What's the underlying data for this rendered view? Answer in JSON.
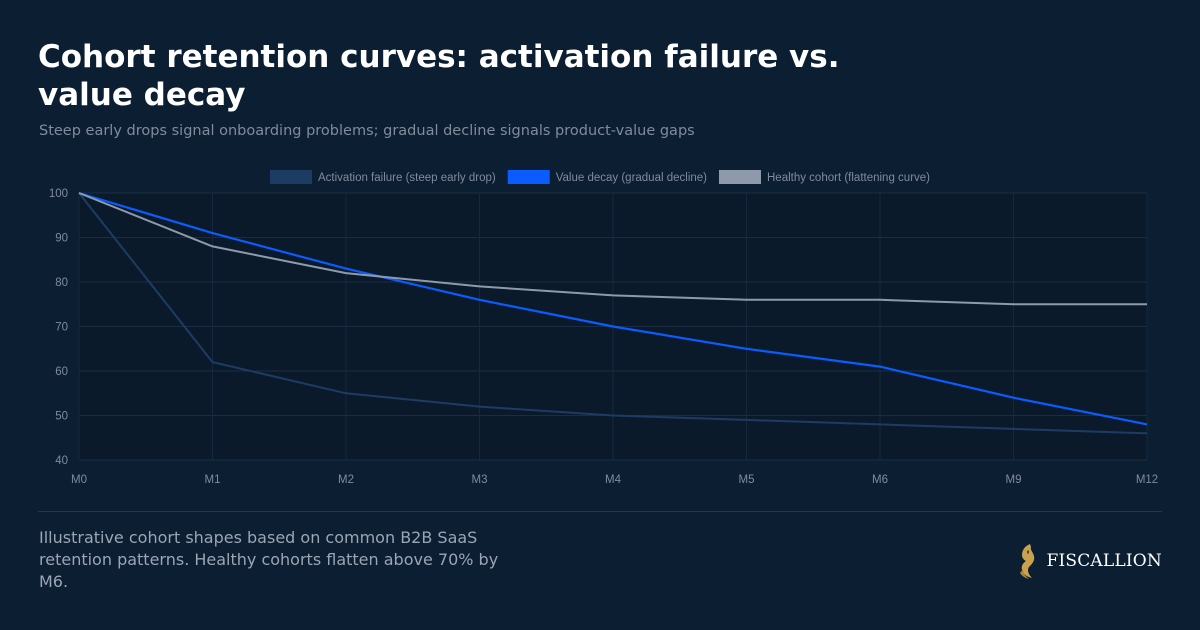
{
  "header": {
    "title": "Cohort retention curves: activation failure vs. value decay",
    "subtitle": "Steep early drops signal onboarding problems; gradual decline signals product-value gaps"
  },
  "footer": {
    "note": "Illustrative cohort shapes based on common B2B SaaS retention patterns. Healthy cohorts flatten above 70% by M6.",
    "brand": "FISCALLION",
    "logo_icon": "horse-head-icon",
    "logo_color": "#c8a24e"
  },
  "chart_data": {
    "type": "line",
    "categories": [
      "M0",
      "M1",
      "M2",
      "M3",
      "M4",
      "M5",
      "M6",
      "M9",
      "M12"
    ],
    "ylim": [
      40,
      100
    ],
    "yticks": [
      40,
      50,
      60,
      70,
      80,
      90,
      100
    ],
    "grid": true,
    "legend": "top-center",
    "series": [
      {
        "name": "Activation failure (steep early drop)",
        "color": "#1d3c64",
        "values": [
          100,
          62,
          55,
          52,
          50,
          49,
          48,
          47,
          46
        ]
      },
      {
        "name": "Value decay (gradual decline)",
        "color": "#0b5cff",
        "values": [
          100,
          91,
          83,
          76,
          70,
          65,
          61,
          54,
          48
        ]
      },
      {
        "name": "Healthy cohort (flattening curve)",
        "color": "#8e9aab",
        "values": [
          100,
          88,
          82,
          79,
          77,
          76,
          76,
          75,
          75
        ]
      }
    ]
  }
}
